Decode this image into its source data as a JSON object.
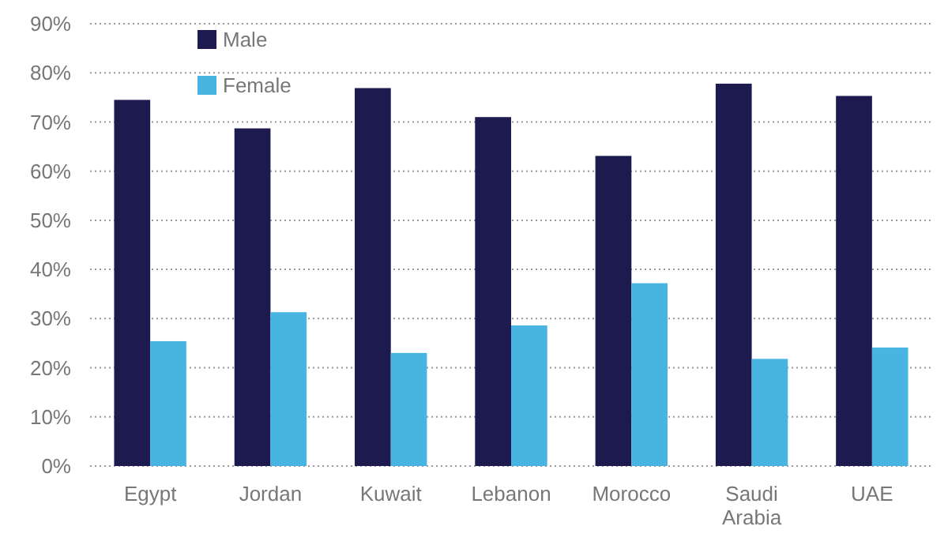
{
  "chart_data": {
    "type": "bar",
    "categories": [
      "Egypt",
      "Jordan",
      "Kuwait",
      "Lebanon",
      "Morocco",
      "Saudi Arabia",
      "UAE"
    ],
    "series": [
      {
        "name": "Male",
        "color": "#1c1a4f",
        "values": [
          74.5,
          68.7,
          76.9,
          71.0,
          63.1,
          77.8,
          75.3
        ]
      },
      {
        "name": "Female",
        "color": "#47b4e1",
        "values": [
          25.4,
          31.3,
          23.0,
          28.6,
          37.2,
          21.8,
          24.1
        ]
      }
    ],
    "ylim": [
      0,
      90
    ],
    "yticks": [
      {
        "value": 0,
        "label": "0%"
      },
      {
        "value": 10,
        "label": "10%"
      },
      {
        "value": 20,
        "label": "20%"
      },
      {
        "value": 30,
        "label": "30%"
      },
      {
        "value": 40,
        "label": "40%"
      },
      {
        "value": 50,
        "label": "50%"
      },
      {
        "value": 60,
        "label": "60%"
      },
      {
        "value": 70,
        "label": "70%"
      },
      {
        "value": 80,
        "label": "80%"
      },
      {
        "value": 90,
        "label": "90%"
      }
    ],
    "grid": "y",
    "legend": "top left"
  }
}
